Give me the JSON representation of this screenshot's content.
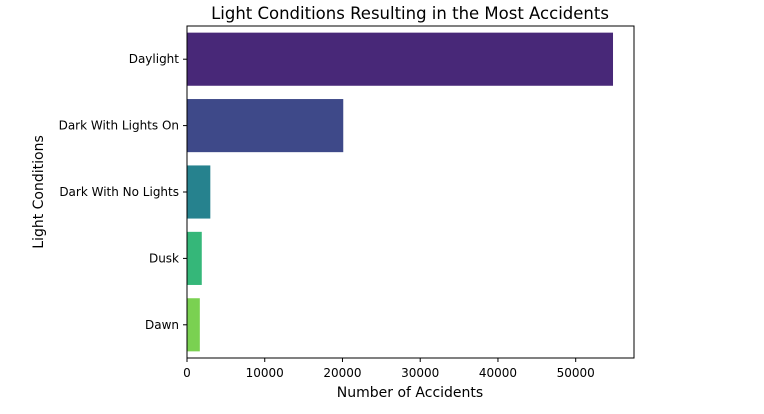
{
  "chart_data": {
    "type": "bar",
    "orientation": "horizontal",
    "title": "Light Conditions Resulting in the Most Accidents",
    "xlabel": "Number of Accidents",
    "ylabel": "Light Conditions",
    "categories": [
      "Daylight",
      "Dark With Lights On",
      "Dark With No Lights",
      "Dusk",
      "Dawn"
    ],
    "values": [
      54800,
      20100,
      3000,
      1900,
      1650
    ],
    "colors": [
      "#482878",
      "#3e4989",
      "#26828e",
      "#35b779",
      "#7ad151"
    ],
    "x_ticks": [
      "0",
      "10000",
      "20000",
      "30000",
      "40000",
      "50000"
    ],
    "xlim": [
      0,
      57500
    ],
    "grid": false,
    "legend": "none"
  }
}
